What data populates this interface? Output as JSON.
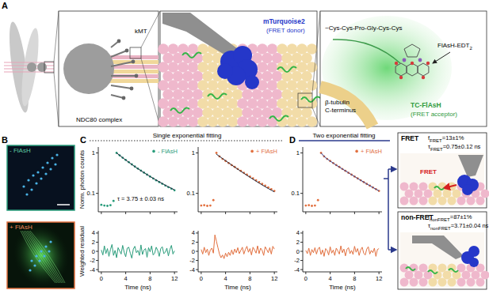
{
  "panel_labels": [
    "A",
    "B",
    "C",
    "D"
  ],
  "headings": {
    "single": "Single exponential fitting",
    "two": "Two exponential fitting"
  },
  "schematic": {
    "kmt": "kMT",
    "ndc80": "NDC80 complex",
    "donor_name": "mTurquoise2",
    "donor_role": "(FRET donor)",
    "tc_motif": "~Cys-Cys-Pro-Gly-Cys-Cys",
    "flash_reagent": "FlAsH-EDT",
    "flash_sub": "2",
    "tubulin_line1": "β-tubulin",
    "tubulin_line2": "C-terminus",
    "acceptor_name": "TC-FlAsH",
    "acceptor_role": "(FRET acceptor)"
  },
  "microscopy": {
    "minus": "- FlAsH",
    "plus": "+ FlAsH"
  },
  "results": {
    "fret": {
      "title": "FRET",
      "symbol": "f",
      "subscript": "FRET",
      "fraction": "=13±1%",
      "tau_symbol": "τ",
      "tau_text": "=0.75±0.12 ns",
      "image_label": "FRET"
    },
    "nonfret": {
      "title": "non-FRET",
      "symbol": "f",
      "subscript": "nonFRET",
      "fraction": "=87±1%",
      "tau_symbol": "τ",
      "tau_text": "=3.71±0.04 ns"
    }
  },
  "chart_data": [
    {
      "type": "scatter",
      "x": [
        0,
        0.5,
        1,
        1.5,
        2,
        2.5,
        3,
        3.5,
        4,
        4.5,
        5,
        5.5,
        6,
        6.5,
        7,
        7.5,
        8,
        8.5,
        9,
        9.5,
        10,
        10.5,
        11,
        11.5,
        12
      ],
      "series": [
        {
          "name": "- FlAsH",
          "type": "scatter",
          "color": "#2a9d7c",
          "marker": "circle",
          "values": [
            0.052,
            0.05,
            0.049,
            0.051,
            0.065,
            1.0,
            0.87,
            0.76,
            0.67,
            0.59,
            0.52,
            0.46,
            0.41,
            0.365,
            0.325,
            0.29,
            0.26,
            0.233,
            0.21,
            0.19,
            0.172,
            0.156,
            0.142,
            0.13,
            0.119
          ]
        },
        {
          "type": "line",
          "color": "#1b2238",
          "line_style": "solid",
          "values": [
            null,
            null,
            null,
            null,
            null,
            1.0,
            0.872,
            0.762,
            0.668,
            0.587,
            0.518,
            0.458,
            0.407,
            0.363,
            0.325,
            0.291,
            0.262,
            0.236,
            0.213,
            0.193,
            0.175,
            0.159,
            0.145,
            0.133,
            0.122
          ]
        }
      ],
      "xlim": [
        -0.5,
        12.5
      ],
      "xticks": [
        0,
        4,
        8,
        12
      ],
      "ylim": [
        0.035,
        1.4
      ],
      "yticks": [
        0.1,
        1
      ],
      "log": "y",
      "tick_labels": "y",
      "legend": "upper right",
      "y_label": "Norm. photon counts",
      "annotation": "τ = 3.75 ± 0.03 ns"
    },
    {
      "type": "scatter",
      "x": [
        0,
        0.5,
        1,
        1.5,
        2,
        2.5,
        3,
        3.5,
        4,
        4.5,
        5,
        5.5,
        6,
        6.5,
        7,
        7.5,
        8,
        8.5,
        9,
        9.5,
        10,
        10.5,
        11,
        11.5,
        12
      ],
      "series": [
        {
          "name": "+ FlAsH",
          "type": "scatter",
          "color": "#e2703f",
          "marker": "circle",
          "values": [
            0.05,
            0.051,
            0.049,
            0.05,
            0.068,
            1.0,
            0.82,
            0.71,
            0.63,
            0.56,
            0.5,
            0.45,
            0.4,
            0.36,
            0.322,
            0.29,
            0.26,
            0.234,
            0.211,
            0.19,
            0.171,
            0.155,
            0.14,
            0.127,
            0.115
          ]
        },
        {
          "type": "line",
          "color": "#1b2238",
          "line_style": "solid",
          "values": [
            null,
            null,
            null,
            null,
            null,
            0.93,
            0.82,
            0.725,
            0.642,
            0.568,
            0.503,
            0.446,
            0.396,
            0.352,
            0.314,
            0.28,
            0.25,
            0.224,
            0.2,
            0.18,
            0.162,
            0.146,
            0.132,
            0.12,
            0.109
          ]
        }
      ],
      "xlim": [
        -0.5,
        12.5
      ],
      "xticks": [
        0,
        4,
        8,
        12
      ],
      "ylim": [
        0.035,
        1.4
      ],
      "yticks": [
        0.1,
        1
      ],
      "log": "y",
      "tick_labels": "y",
      "legend": "upper right"
    },
    {
      "type": "scatter",
      "x": [
        0,
        0.5,
        1,
        1.5,
        2,
        2.5,
        3,
        3.5,
        4,
        4.5,
        5,
        5.5,
        6,
        6.5,
        7,
        7.5,
        8,
        8.5,
        9,
        9.5,
        10,
        10.5,
        11,
        11.5,
        12
      ],
      "series": [
        {
          "name": "+ FlAsH",
          "type": "scatter",
          "color": "#e2703f",
          "marker": "circle",
          "values": [
            0.05,
            0.051,
            0.049,
            0.05,
            0.068,
            1.0,
            0.82,
            0.71,
            0.63,
            0.56,
            0.5,
            0.45,
            0.4,
            0.36,
            0.322,
            0.29,
            0.26,
            0.234,
            0.211,
            0.19,
            0.171,
            0.155,
            0.14,
            0.127,
            0.115
          ]
        },
        {
          "type": "line",
          "color": "#2b3a8c",
          "line_style": "solid",
          "values": [
            null,
            null,
            null,
            null,
            null,
            1.0,
            0.82,
            0.712,
            0.628,
            0.558,
            0.498,
            0.447,
            0.401,
            0.36,
            0.323,
            0.29,
            0.261,
            0.234,
            0.211,
            0.19,
            0.171,
            0.155,
            0.14,
            0.127,
            0.115
          ]
        }
      ],
      "xlim": [
        -0.5,
        12.5
      ],
      "xticks": [
        0,
        4,
        8,
        12
      ],
      "ylim": [
        0.035,
        1.4
      ],
      "yticks": [
        0.1,
        1
      ],
      "log": "y",
      "tick_labels": "y",
      "legend": "upper right"
    },
    {
      "type": "line",
      "x": [
        0,
        0.25,
        0.5,
        0.75,
        1,
        1.25,
        1.5,
        1.75,
        2,
        2.25,
        2.5,
        2.75,
        3,
        3.25,
        3.5,
        3.75,
        4,
        4.25,
        4.5,
        4.75,
        5,
        5.25,
        5.5,
        5.75,
        6,
        6.25,
        6.5,
        6.75,
        7,
        7.25,
        7.5,
        7.75,
        8,
        8.25,
        8.5,
        8.75,
        9,
        9.25,
        9.5,
        9.75,
        10,
        10.25,
        10.5,
        10.75,
        11,
        11.25,
        11.5,
        11.75,
        12
      ],
      "series": [
        {
          "type": "line",
          "color": "#2a9d7c",
          "line_style": "solid",
          "values": [
            0.3,
            -0.8,
            1.2,
            -0.5,
            0.6,
            -1.1,
            0.4,
            1.5,
            -0.9,
            0.2,
            -1.4,
            0.8,
            0.1,
            -0.6,
            1.3,
            -0.2,
            -1.2,
            0.7,
            0.9,
            -0.4,
            -1.5,
            0.5,
            1.1,
            -0.3,
            0.2,
            -0.9,
            1.4,
            -0.7,
            0.3,
            0.6,
            -1.3,
            0.8,
            -0.1,
            1.2,
            -0.8,
            -0.4,
            0.9,
            0.2,
            -1.1,
            0.6,
            1.0,
            -0.5,
            -0.2,
            0.7,
            -1.0,
            0.4,
            1.3,
            -0.6,
            0.1
          ]
        }
      ],
      "xlim": [
        -0.5,
        12.5
      ],
      "xticks": [
        0,
        4,
        8,
        12
      ],
      "ylim": [
        -4.5,
        4.5
      ],
      "yticks": [
        -4,
        -2,
        0,
        2,
        4
      ],
      "y_label": "Weighted residual",
      "x_label": "Time (ns)"
    },
    {
      "type": "line",
      "x": [
        0,
        0.25,
        0.5,
        0.75,
        1,
        1.25,
        1.5,
        1.75,
        2,
        2.25,
        2.5,
        2.75,
        3,
        3.25,
        3.5,
        3.75,
        4,
        4.25,
        4.5,
        4.75,
        5,
        5.25,
        5.5,
        5.75,
        6,
        6.25,
        6.5,
        6.75,
        7,
        7.25,
        7.5,
        7.75,
        8,
        8.25,
        8.5,
        8.75,
        9,
        9.25,
        9.5,
        9.75,
        10,
        10.25,
        10.5,
        10.75,
        11,
        11.25,
        11.5,
        11.75,
        12
      ],
      "series": [
        {
          "type": "line",
          "color": "#e2703f",
          "line_style": "solid",
          "values": [
            0.4,
            -0.6,
            0.9,
            -0.3,
            0.5,
            -0.9,
            0.3,
            0.7,
            -0.4,
            3.6,
            2.2,
            0.8,
            -0.6,
            -1.4,
            -0.8,
            -1.6,
            -0.4,
            -1.2,
            -0.2,
            -0.9,
            0.3,
            -0.7,
            0.5,
            -0.3,
            0.8,
            -0.5,
            0.2,
            0.9,
            -0.6,
            0.4,
            1.1,
            -0.2,
            0.6,
            -0.8,
            0.9,
            0.3,
            -0.4,
            1.2,
            -0.5,
            0.7,
            0.2,
            -0.9,
            1.0,
            0.4,
            -0.3,
            0.8,
            -0.6,
            1.1,
            0.5
          ]
        }
      ],
      "xlim": [
        -0.5,
        12.5
      ],
      "xticks": [
        0,
        4,
        8,
        12
      ],
      "ylim": [
        -4.5,
        4.5
      ],
      "yticks": [
        -4,
        -2,
        0,
        2,
        4
      ],
      "x_label": "Time (ns)"
    },
    {
      "type": "line",
      "x": [
        0,
        0.25,
        0.5,
        0.75,
        1,
        1.25,
        1.5,
        1.75,
        2,
        2.25,
        2.5,
        2.75,
        3,
        3.25,
        3.5,
        3.75,
        4,
        4.25,
        4.5,
        4.75,
        5,
        5.25,
        5.5,
        5.75,
        6,
        6.25,
        6.5,
        6.75,
        7,
        7.25,
        7.5,
        7.75,
        8,
        8.25,
        8.5,
        8.75,
        9,
        9.25,
        9.5,
        9.75,
        10,
        10.25,
        10.5,
        10.75,
        11,
        11.25,
        11.5,
        11.75,
        12
      ],
      "series": [
        {
          "type": "line",
          "color": "#e2703f",
          "line_style": "solid",
          "values": [
            0.2,
            -0.5,
            0.7,
            -0.9,
            0.4,
            -0.3,
            0.8,
            -0.6,
            0.5,
            0.9,
            -0.7,
            0.3,
            -1.1,
            0.6,
            0.2,
            -0.8,
            1.0,
            -0.4,
            0.3,
            -0.9,
            0.7,
            0.1,
            -0.6,
            1.2,
            -0.3,
            0.5,
            -1.0,
            0.4,
            0.8,
            -0.5,
            0.2,
            -0.7,
            1.1,
            -0.2,
            0.6,
            -0.9,
            0.3,
            0.9,
            -0.4,
            -0.8,
            0.5,
            1.0,
            -0.6,
            0.2,
            -0.3,
            0.7,
            -1.1,
            0.4,
            0.6
          ]
        }
      ],
      "xlim": [
        -0.5,
        12.5
      ],
      "xticks": [
        0,
        4,
        8,
        12
      ],
      "ylim": [
        -4.5,
        4.5
      ],
      "yticks": [
        -4,
        -2,
        0,
        2,
        4
      ],
      "x_label": "Time (ns)"
    }
  ]
}
